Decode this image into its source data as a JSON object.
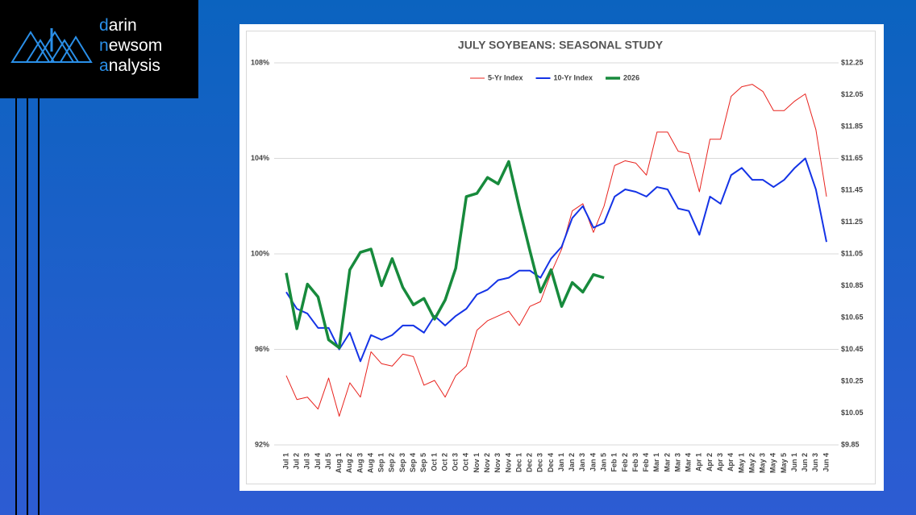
{
  "logo": {
    "lines": [
      "darin",
      "newsom",
      "analysis"
    ]
  },
  "chart_data": {
    "type": "line",
    "title": "JULY SOYBEANS: SEASONAL STUDY",
    "categories": [
      "Jul 1",
      "Jul 2",
      "Jul 3",
      "Jul 4",
      "Jul 5",
      "Aug 1",
      "Aug 2",
      "Aug 3",
      "Aug 4",
      "Sep 1",
      "Sep 2",
      "Sep 3",
      "Sep 4",
      "Sep 5",
      "Oct 1",
      "Oct 2",
      "Oct 3",
      "Oct 4",
      "Nov 1",
      "Nov 2",
      "Nov 3",
      "Nov 4",
      "Dec 1",
      "Dec 2",
      "Dec 3",
      "Dec 4",
      "Jan 1",
      "Jan 2",
      "Jan 3",
      "Jan 4",
      "Jan 5",
      "Feb 1",
      "Feb 2",
      "Feb 3",
      "Feb 4",
      "Mar 1",
      "Mar 2",
      "Mar 3",
      "Mar 4",
      "Apr 1",
      "Apr 2",
      "Apr 3",
      "Apr 4",
      "May 1",
      "May 2",
      "May 3",
      "May 4",
      "May 5",
      "Jun 1",
      "Jun 2",
      "Jun 3",
      "Jun 4"
    ],
    "series": [
      {
        "name": "5-Yr Index",
        "color": "#e8231e",
        "width": 1,
        "values": [
          94.9,
          93.9,
          94.0,
          93.5,
          94.8,
          93.2,
          94.6,
          94.0,
          95.9,
          95.4,
          95.3,
          95.8,
          95.7,
          94.5,
          94.7,
          94.0,
          94.9,
          95.3,
          96.8,
          97.2,
          97.4,
          97.6,
          97.0,
          97.8,
          98.0,
          99.2,
          100.2,
          101.8,
          102.1,
          100.9,
          102.0,
          103.7,
          103.9,
          103.8,
          103.3,
          105.1,
          105.1,
          104.3,
          104.2,
          102.6,
          104.8,
          104.8,
          106.6,
          107.0,
          107.1,
          106.8,
          106.0,
          106.0,
          106.4,
          106.7,
          105.2,
          102.4
        ]
      },
      {
        "name": "10-Yr Index",
        "color": "#1433e6",
        "width": 2,
        "values": [
          98.4,
          97.7,
          97.5,
          96.9,
          96.9,
          96.0,
          96.7,
          95.5,
          96.6,
          96.4,
          96.6,
          97.0,
          97.0,
          96.7,
          97.4,
          97.0,
          97.4,
          97.7,
          98.3,
          98.5,
          98.9,
          99.0,
          99.3,
          99.3,
          99.0,
          99.8,
          100.3,
          101.5,
          102.0,
          101.1,
          101.3,
          102.4,
          102.7,
          102.6,
          102.4,
          102.8,
          102.7,
          101.9,
          101.8,
          100.8,
          102.4,
          102.1,
          103.3,
          103.6,
          103.1,
          103.1,
          102.8,
          103.1,
          103.6,
          104.0,
          102.7,
          100.5
        ]
      },
      {
        "name": "2026",
        "color": "#178a3c",
        "width": 3.5,
        "axis": "y2",
        "values": [
          10.93,
          10.58,
          10.86,
          10.78,
          10.51,
          10.46,
          10.95,
          11.06,
          11.08,
          10.85,
          11.02,
          10.84,
          10.73,
          10.77,
          10.64,
          10.76,
          10.96,
          11.41,
          11.43,
          11.53,
          11.49,
          11.63,
          11.34,
          11.07,
          10.81,
          10.95,
          10.72,
          10.87,
          10.81,
          10.92,
          10.9,
          null,
          null,
          null,
          null,
          null,
          null,
          null,
          null,
          null,
          null,
          null,
          null,
          null,
          null,
          null,
          null,
          null,
          null,
          null,
          null,
          null
        ]
      }
    ],
    "ylim": [
      92,
      108
    ],
    "yticks": [
      {
        "value": 92,
        "label": "92%"
      },
      {
        "value": 96,
        "label": "96%"
      },
      {
        "value": 100,
        "label": "100%"
      },
      {
        "value": 104,
        "label": "104%"
      },
      {
        "value": 108,
        "label": "108%"
      }
    ],
    "y2lim": [
      9.85,
      12.25
    ],
    "y2ticks": [
      {
        "value": 9.85,
        "label": "$9.85"
      },
      {
        "value": 10.05,
        "label": "$10.05"
      },
      {
        "value": 10.25,
        "label": "$10.25"
      },
      {
        "value": 10.45,
        "label": "$10.45"
      },
      {
        "value": 10.65,
        "label": "$10.65"
      },
      {
        "value": 10.85,
        "label": "$10.85"
      },
      {
        "value": 11.05,
        "label": "$11.05"
      },
      {
        "value": 11.25,
        "label": "$11.25"
      },
      {
        "value": 11.45,
        "label": "$11.45"
      },
      {
        "value": 11.65,
        "label": "$11.65"
      },
      {
        "value": 11.85,
        "label": "$11.85"
      },
      {
        "value": 12.05,
        "label": "$12.05"
      },
      {
        "value": 12.25,
        "label": "$12.25"
      }
    ],
    "grid": true
  }
}
